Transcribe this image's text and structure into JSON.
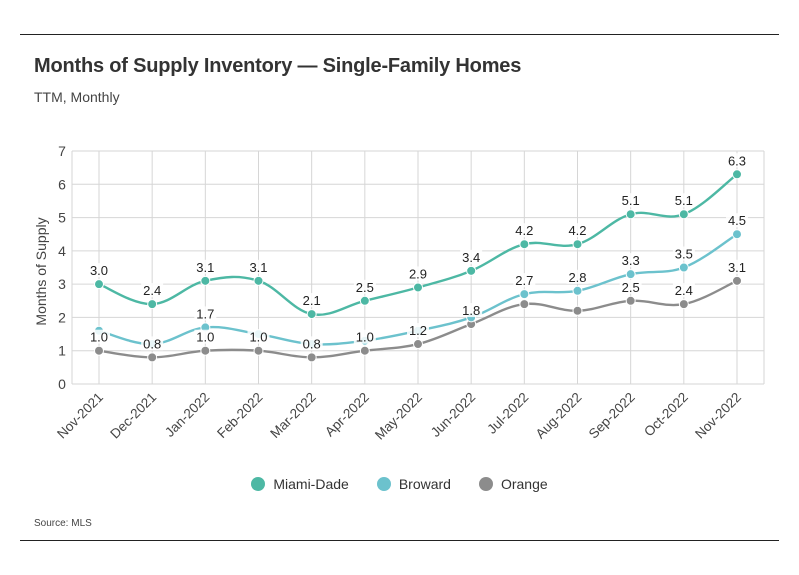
{
  "title": "Months of Supply Inventory — Single-Family Homes",
  "subtitle": "TTM, Monthly",
  "source": "Source:  MLS",
  "chart_data": {
    "type": "line",
    "title": "Months of Supply Inventory — Single-Family Homes",
    "subtitle": "TTM, Monthly",
    "xlabel": "",
    "ylabel": "Months of Supply",
    "ylim": [
      0,
      7
    ],
    "yticks": [
      0,
      1,
      2,
      3,
      4,
      5,
      6,
      7
    ],
    "grid": true,
    "legend_position": "bottom",
    "categories": [
      "Nov-2021",
      "Dec-2021",
      "Jan-2022",
      "Feb-2022",
      "Mar-2022",
      "Apr-2022",
      "May-2022",
      "Jun-2022",
      "Jul-2022",
      "Aug-2022",
      "Sep-2022",
      "Oct-2022",
      "Nov-2022"
    ],
    "series": [
      {
        "name": "Miami-Dade",
        "color": "#4db8a4",
        "values": [
          3.0,
          2.4,
          3.1,
          3.1,
          2.1,
          2.5,
          2.9,
          3.4,
          4.2,
          4.2,
          5.1,
          5.1,
          6.3
        ],
        "labels": [
          "3.0",
          "2.4",
          "3.1",
          "3.1",
          "2.1",
          "2.5",
          "2.9",
          "3.4",
          "4.2",
          "4.2",
          "5.1",
          "5.1",
          "6.3"
        ],
        "label_mask": [
          true,
          true,
          true,
          true,
          true,
          true,
          true,
          true,
          true,
          true,
          true,
          true,
          true
        ]
      },
      {
        "name": "Broward",
        "color": "#6cc2cd",
        "values": [
          1.6,
          1.2,
          1.7,
          1.5,
          1.2,
          1.3,
          1.6,
          2.0,
          2.7,
          2.8,
          3.3,
          3.5,
          4.5
        ],
        "labels": [
          "",
          "",
          "1.7",
          "",
          "",
          "",
          "",
          "",
          "2.7",
          "2.8",
          "3.3",
          "3.5",
          "4.5"
        ],
        "label_mask": [
          false,
          false,
          true,
          false,
          false,
          false,
          false,
          false,
          true,
          true,
          true,
          true,
          true
        ]
      },
      {
        "name": "Orange",
        "color": "#8c8c8c",
        "values": [
          1.0,
          0.8,
          1.0,
          1.0,
          0.8,
          1.0,
          1.2,
          1.8,
          2.4,
          2.2,
          2.5,
          2.4,
          3.1
        ],
        "labels": [
          "1.0",
          "0.8",
          "1.0",
          "1.0",
          "0.8",
          "1.0",
          "1.2",
          "1.8",
          "",
          "",
          "2.5",
          "2.4",
          "3.1"
        ],
        "label_mask": [
          true,
          true,
          true,
          true,
          true,
          true,
          true,
          true,
          false,
          false,
          true,
          true,
          true
        ]
      }
    ]
  }
}
